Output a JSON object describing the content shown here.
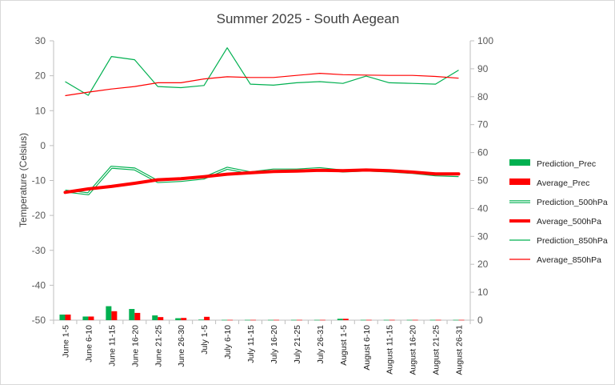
{
  "chart_data": {
    "type": "line",
    "title": "Summer 2025 - South Aegean",
    "ylabel": "Temperature (Celsius)",
    "ylim": [
      -50,
      30
    ],
    "y_ticks": [
      30,
      20,
      10,
      0,
      -10,
      -20,
      -30,
      -40,
      -50
    ],
    "y2lim": [
      0,
      100
    ],
    "y2_ticks": [
      100,
      90,
      80,
      70,
      60,
      50,
      40,
      30,
      20,
      10,
      0
    ],
    "grid": false,
    "legend_position": "right",
    "categories": [
      "June 1-5",
      "June 6-10",
      "June 11-15",
      "June 16-20",
      "June 21-25",
      "June 26-30",
      "July 1-5",
      "July 6-10",
      "July 11-15",
      "July 16-20",
      "July 21-25",
      "July 26-31",
      "August 1-5",
      "August 6-10",
      "August 11-15",
      "August 16-20",
      "August 21-25",
      "August 26-31"
    ],
    "series": [
      {
        "name": "Prediction_Prec",
        "type": "bar",
        "axis": "secondary",
        "color": "#00b050",
        "values": [
          2.0,
          1.3,
          5.0,
          4.0,
          1.7,
          0.7,
          0.2,
          0.1,
          0.1,
          0.1,
          0.1,
          0.1,
          0.5,
          0.1,
          0.1,
          0.1,
          0.1,
          0.1
        ]
      },
      {
        "name": "Average_Prec",
        "type": "bar",
        "axis": "secondary",
        "color": "#ff0000",
        "values": [
          2.0,
          1.3,
          3.2,
          2.6,
          1.1,
          0.8,
          1.2,
          0.1,
          0.1,
          0.1,
          0.1,
          0.1,
          0.5,
          0.1,
          0.1,
          0.1,
          0.1,
          0.1
        ]
      },
      {
        "name": "Prediction_500hPa",
        "type": "line",
        "style": "double",
        "axis": "primary",
        "color": "#00b050",
        "values": [
          -13,
          -13.8,
          -6.2,
          -6.7,
          -10.3,
          -10,
          -9.3,
          -6.5,
          -7.8,
          -7,
          -7,
          -6.6,
          -7.3,
          -7,
          -7.3,
          -7.7,
          -8.4,
          -8.6
        ]
      },
      {
        "name": "Average_500hPa",
        "type": "line",
        "style": "thick",
        "axis": "primary",
        "color": "#ff0000",
        "values": [
          -13.4,
          -12.4,
          -11.7,
          -10.8,
          -9.8,
          -9.5,
          -8.9,
          -8.2,
          -7.8,
          -7.4,
          -7.3,
          -7.1,
          -7.2,
          -7,
          -7.2,
          -7.6,
          -8.1,
          -8.1
        ]
      },
      {
        "name": "Prediction_850hPa",
        "type": "line",
        "style": "thin",
        "axis": "primary",
        "color": "#00b050",
        "values": [
          18.3,
          14.4,
          25.5,
          24.6,
          16.9,
          16.6,
          17.2,
          28,
          17.6,
          17.3,
          18,
          18.3,
          17.8,
          19.9,
          18,
          17.8,
          17.6,
          21.6
        ]
      },
      {
        "name": "Average_850hPa",
        "type": "line",
        "style": "thin",
        "axis": "primary",
        "color": "#ff0000",
        "values": [
          14.3,
          15.3,
          16.2,
          16.9,
          18,
          18,
          19.1,
          19.7,
          19.5,
          19.5,
          20.1,
          20.7,
          20.3,
          20.2,
          20.1,
          20.1,
          19.8,
          19.3
        ]
      }
    ]
  }
}
